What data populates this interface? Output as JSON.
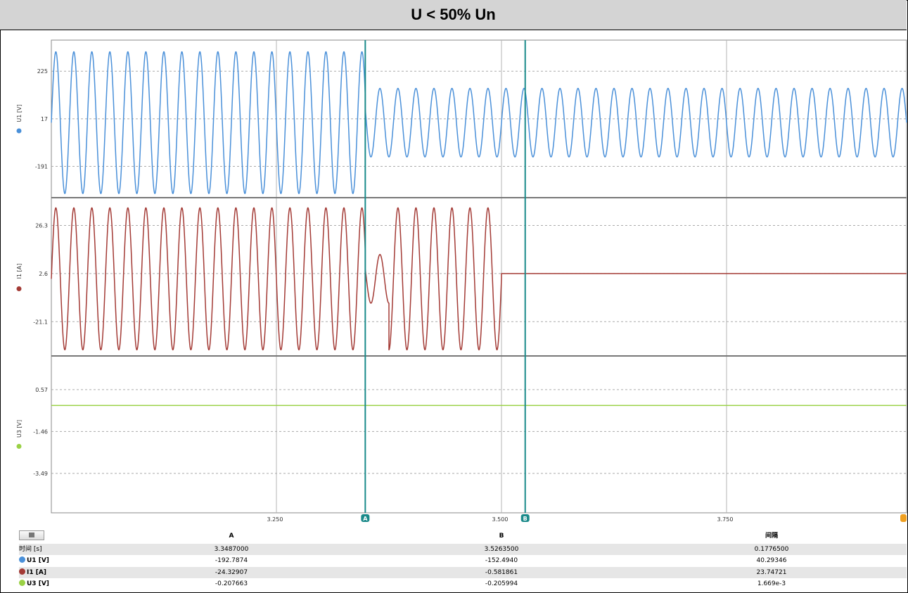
{
  "title": "U < 50% Un",
  "x_ticks": [
    "3.250",
    "3.500",
    "3.750"
  ],
  "cursors": {
    "a_label": "A",
    "b_label": "B",
    "a_time": 3.3487,
    "b_time": 3.52635
  },
  "colors": {
    "u1": "#4a90d9",
    "i1": "#a33a35",
    "u3": "#9ad145",
    "cursor": "#1a8a8a",
    "end_marker": "#f0a020"
  },
  "channels": [
    {
      "axis_label": "U1 [V]",
      "ticks": [
        "225",
        "17",
        "-191"
      ]
    },
    {
      "axis_label": "I1 [A]",
      "ticks": [
        "26.3",
        "2.6",
        "-21.1"
      ]
    },
    {
      "axis_label": "U3 [V]",
      "ticks": [
        "0.57",
        "-1.46",
        "-3.49"
      ]
    }
  ],
  "table": {
    "header": [
      "",
      "A",
      "B",
      "间隔"
    ],
    "rows": [
      {
        "label": "时间 [s]",
        "a": "3.3487000",
        "b": "3.5263500",
        "interval": "0.1776500"
      },
      {
        "label": "U1 [V]",
        "a": "-192.7874",
        "b": "-152.4940",
        "interval": "40.29346"
      },
      {
        "label": "I1 [A]",
        "a": "-24.32907",
        "b": "-0.581861",
        "interval": "23.74721"
      },
      {
        "label": "U3 [V]",
        "a": "-0.207663",
        "b": "-0.205994",
        "interval": "1.669e-3"
      }
    ]
  },
  "chart_data": {
    "type": "line",
    "title": "U < 50% Un",
    "x_range": [
      3.0,
      3.95
    ],
    "x_ticks": [
      3.25,
      3.5,
      3.75
    ],
    "fundamental_hz": 50,
    "series": [
      {
        "name": "U1 [V]",
        "ylim": [
          -328,
          361
        ],
        "y_ticks": [
          225,
          17,
          -191
        ],
        "segments": [
          {
            "t_start": 3.0,
            "t_end": 3.3487,
            "amplitude": 310,
            "offset": 0
          },
          {
            "t_start": 3.3487,
            "t_end": 3.95,
            "amplitude": 150,
            "offset": 0
          }
        ]
      },
      {
        "name": "I1 [A]",
        "ylim": [
          -38,
          40
        ],
        "y_ticks": [
          26.3,
          2.6,
          -21.1
        ],
        "segments": [
          {
            "t_start": 3.0,
            "t_end": 3.3487,
            "amplitude": 35,
            "offset": 0
          },
          {
            "t_start": 3.3487,
            "t_end": 3.375,
            "amplitude": 12,
            "offset": 0
          },
          {
            "t_start": 3.375,
            "t_end": 3.5,
            "amplitude": 35,
            "offset": 0
          },
          {
            "t_start": 3.5,
            "t_end": 3.95,
            "amplitude": 0,
            "offset": 2.6
          }
        ]
      },
      {
        "name": "U3 [V]",
        "ylim": [
          -5.4,
          2.2
        ],
        "y_ticks": [
          0.57,
          -1.46,
          -3.49
        ],
        "segments": [
          {
            "t_start": 3.0,
            "t_end": 3.95,
            "amplitude": 0,
            "offset": -0.2
          }
        ]
      }
    ]
  }
}
